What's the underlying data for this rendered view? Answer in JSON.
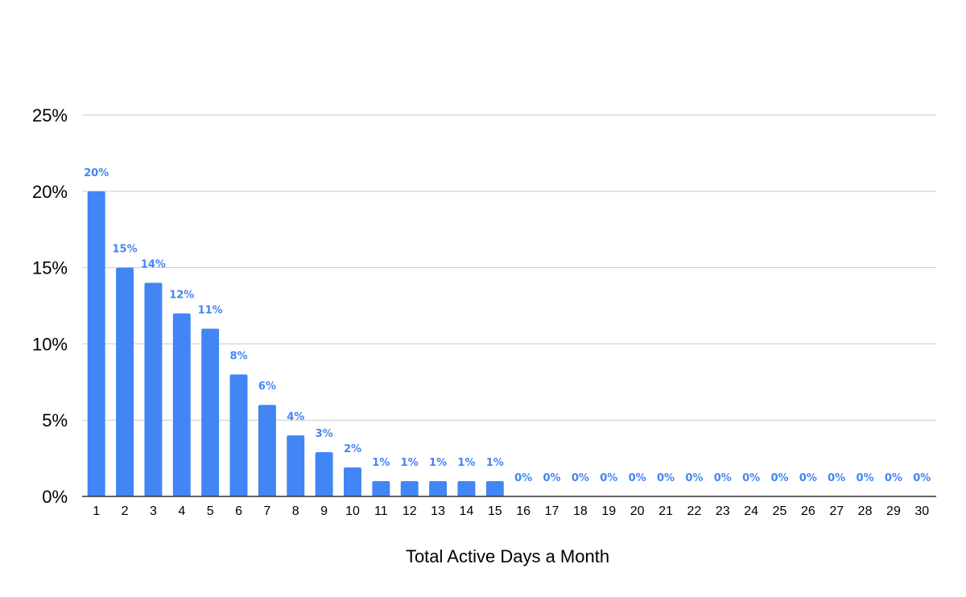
{
  "chart_data": {
    "type": "bar",
    "title": "",
    "xlabel": "Total Active Days a Month",
    "ylabel": "",
    "ylim": [
      0,
      25
    ],
    "y_ticks": [
      "0%",
      "5%",
      "10%",
      "15%",
      "20%",
      "25%"
    ],
    "y_tick_values": [
      0,
      5,
      10,
      15,
      20,
      25
    ],
    "grid": true,
    "bar_color": "#4285f4",
    "categories": [
      "1",
      "2",
      "3",
      "4",
      "5",
      "6",
      "7",
      "8",
      "9",
      "10",
      "11",
      "12",
      "13",
      "14",
      "15",
      "16",
      "17",
      "18",
      "19",
      "20",
      "21",
      "22",
      "23",
      "24",
      "25",
      "26",
      "27",
      "28",
      "29",
      "30"
    ],
    "values": [
      20,
      15,
      14,
      12,
      11,
      8,
      6,
      4,
      2.9,
      1.9,
      1,
      1,
      1,
      1,
      1,
      0,
      0,
      0,
      0,
      0,
      0,
      0,
      0,
      0,
      0,
      0,
      0,
      0,
      0,
      0
    ],
    "data_labels": [
      "20%",
      "15%",
      "14%",
      "12%",
      "11%",
      "8%",
      "6%",
      "4%",
      "3%",
      "2%",
      "1%",
      "1%",
      "1%",
      "1%",
      "1%",
      "0%",
      "0%",
      "0%",
      "0%",
      "0%",
      "0%",
      "0%",
      "0%",
      "0%",
      "0%",
      "0%",
      "0%",
      "0%",
      "0%",
      "0%"
    ]
  }
}
